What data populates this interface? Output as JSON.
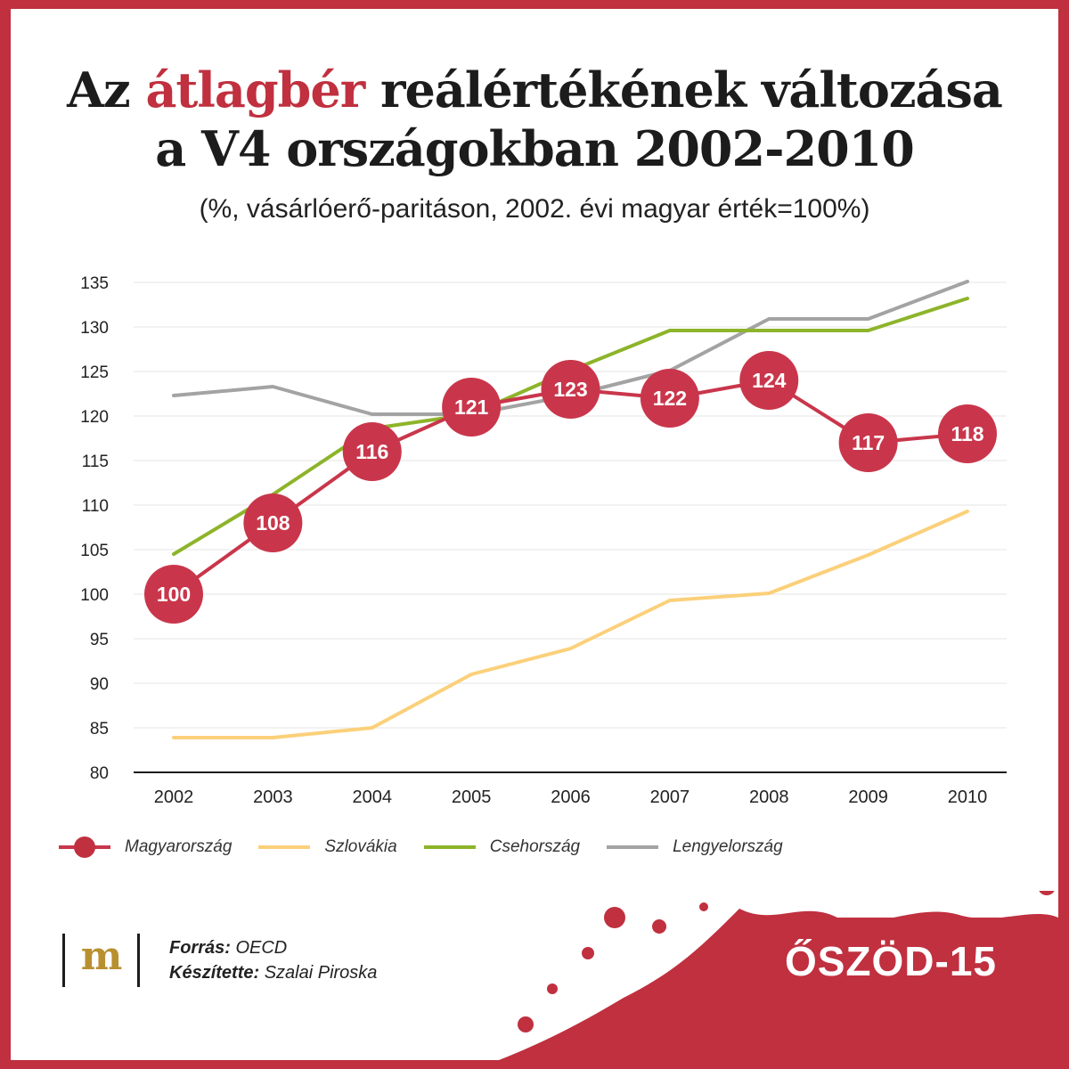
{
  "title": {
    "part1": "Az ",
    "highlight": "átlagbér",
    "part2": " reálértékének változása",
    "line2": "a V4 országokban 2002-2010"
  },
  "subtitle": "(%, vásárlóerő-paritáson, 2002. évi magyar érték=100%)",
  "colors": {
    "accent": "#c0303f",
    "magyarorszag": "#c9364b",
    "szlovakia": "#fbd07a",
    "csehorszag": "#8db42a",
    "lengyelorszag": "#a3a3a3"
  },
  "chart_data": {
    "type": "line",
    "title": "Az átlagbér reálértékének változása a V4 országokban 2002-2010",
    "xlabel": "",
    "ylabel": "",
    "x": [
      "2002",
      "2003",
      "2004",
      "2005",
      "2006",
      "2007",
      "2008",
      "2009",
      "2010"
    ],
    "ylim": [
      80,
      135
    ],
    "yticks": [
      80,
      85,
      90,
      95,
      100,
      105,
      110,
      115,
      120,
      125,
      130,
      135
    ],
    "grid": true,
    "legend": "bottom",
    "series": [
      {
        "name": "Magyarország",
        "values": [
          100,
          108,
          116,
          121,
          123,
          122,
          124,
          117,
          118
        ],
        "labels": [
          "100",
          "108",
          "116",
          "121",
          "123",
          "122",
          "124",
          "117",
          "118"
        ]
      },
      {
        "name": "Szlovákia",
        "values": [
          83.9,
          83.9,
          85,
          91,
          93.9,
          99.3,
          100.1,
          104.4,
          109.3
        ]
      },
      {
        "name": "Csehország",
        "values": [
          104.5,
          111.2,
          118.6,
          120.2,
          125.1,
          129.6,
          129.6,
          129.6,
          133.2
        ]
      },
      {
        "name": "Lengyelország",
        "values": [
          122.3,
          123.3,
          120.2,
          120.2,
          122.3,
          125.1,
          130.9,
          130.9,
          135.1
        ]
      }
    ]
  },
  "footer": {
    "logo": "m",
    "source_label": "Forrás:",
    "source_value": " OECD",
    "author_label": "Készítette:",
    "author_value": " Szalai Piroska",
    "brand": "ŐSZÖD-15"
  }
}
